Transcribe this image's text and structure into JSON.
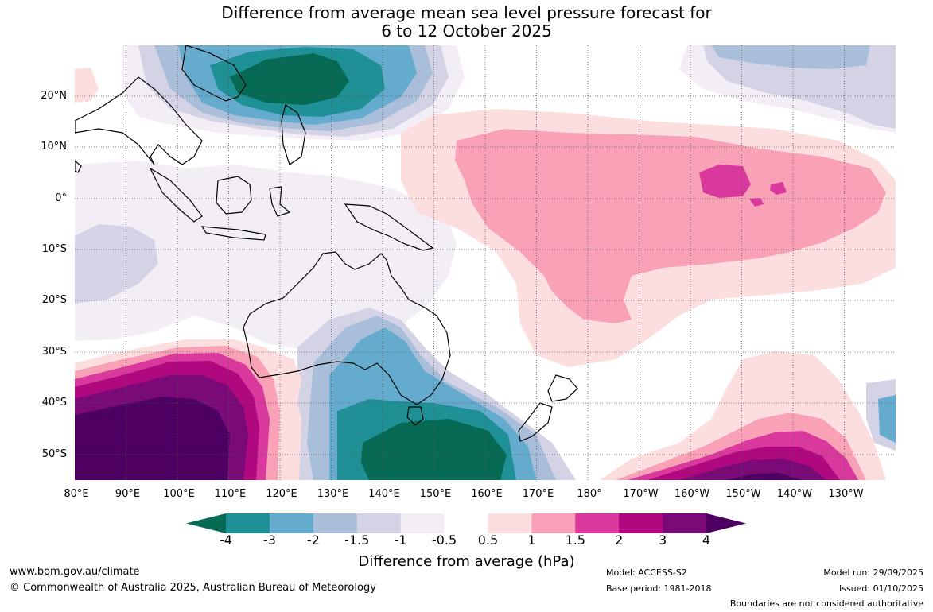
{
  "header": {
    "title_line1": "Difference from average mean sea level pressure forecast for",
    "title_line2": "6 to 12 October 2025"
  },
  "map": {
    "lat_labels": [
      "20°N",
      "10°N",
      "0°",
      "10°S",
      "20°S",
      "30°S",
      "40°S",
      "50°S"
    ],
    "lon_labels": [
      "80°E",
      "90°E",
      "100°E",
      "110°E",
      "120°E",
      "130°E",
      "140°E",
      "150°E",
      "160°E",
      "170°E",
      "180°",
      "170°W",
      "160°W",
      "150°W",
      "140°W",
      "130°W"
    ],
    "colors": {
      "m4": "#066a55",
      "m3": "#1e9096",
      "m2": "#65abce",
      "m15": "#a9bfd9",
      "m1": "#d3d3e5",
      "m05": "#f3eef6",
      "p05": "#ffffff",
      "p1": "#fddede",
      "p15": "#f9a1b7",
      "p2": "#d9389c",
      "p3": "#b0087e",
      "p4": "#7a0a78",
      "p5": "#4e0062",
      "land": "#000000"
    }
  },
  "colorbar": {
    "ticks": [
      "-4",
      "-3",
      "-2",
      "-1.5",
      "-1",
      "-0.5",
      "0.5",
      "1",
      "1.5",
      "2",
      "3",
      "4"
    ],
    "label": "Difference from average (hPa)"
  },
  "footer": {
    "website": "www.bom.gov.au/climate",
    "copyright": "© Commonwealth of Australia 2025, Australian Bureau of Meteorology",
    "model": "Model: ACCESS-S2",
    "base_period": "Base period: 1981-2018",
    "model_run": "Model run: 29/09/2025",
    "issued": "Issued: 01/10/2025",
    "disclaimer": "Boundaries are not considered authoritative"
  }
}
